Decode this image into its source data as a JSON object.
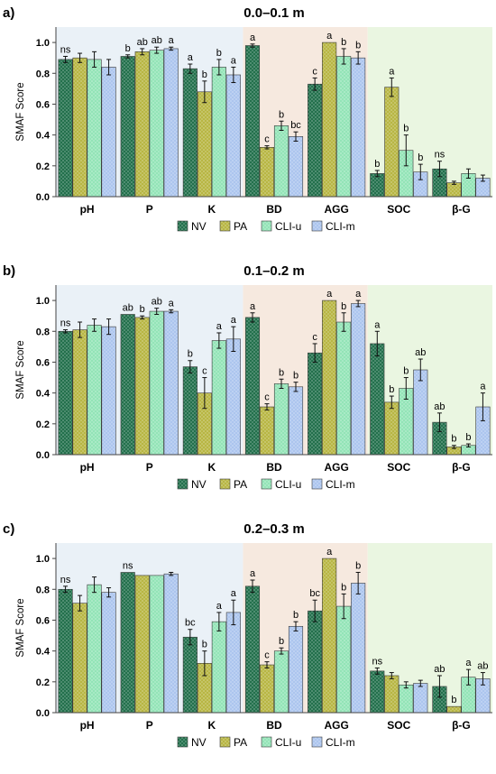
{
  "chart_data": [
    {
      "type": "bar",
      "panel_label": "a)",
      "title": "0.0–0.1 m",
      "ylabel": "SMAF Score",
      "ylim": [
        0,
        1.1
      ],
      "yticks": [
        "0.0",
        "0.2",
        "0.4",
        "0.6",
        "0.8",
        "1.0"
      ],
      "categories": [
        "pH",
        "P",
        "K",
        "BD",
        "AGG",
        "SOC",
        "β-G"
      ],
      "series": [
        {
          "name": "NV",
          "color": "#1b6b46",
          "values": [
            0.89,
            0.91,
            0.83,
            0.98,
            0.73,
            0.15,
            0.18
          ],
          "errors": [
            0.02,
            0.01,
            0.03,
            0.01,
            0.04,
            0.02,
            0.05
          ]
        },
        {
          "name": "PA",
          "color": "#b5b33c",
          "values": [
            0.9,
            0.94,
            0.68,
            0.32,
            1.0,
            0.71,
            0.09
          ],
          "errors": [
            0.03,
            0.02,
            0.07,
            0.01,
            0.0,
            0.06,
            0.01
          ]
        },
        {
          "name": "CLI-u",
          "color": "#8fe3b4",
          "values": [
            0.89,
            0.95,
            0.84,
            0.46,
            0.91,
            0.3,
            0.15
          ],
          "errors": [
            0.05,
            0.02,
            0.05,
            0.03,
            0.05,
            0.1,
            0.03
          ]
        },
        {
          "name": "CLI-m",
          "color": "#a9c3ee",
          "values": [
            0.84,
            0.96,
            0.79,
            0.39,
            0.9,
            0.16,
            0.12
          ],
          "errors": [
            0.05,
            0.01,
            0.05,
            0.03,
            0.04,
            0.05,
            0.02
          ]
        }
      ],
      "letters": [
        [
          "ns",
          "",
          "",
          ""
        ],
        [
          "b",
          "ab",
          "ab",
          "a"
        ],
        [
          "a",
          "b",
          "b",
          "a"
        ],
        [
          "a",
          "c",
          "b",
          "bc"
        ],
        [
          "c",
          "a",
          "b",
          "b"
        ],
        [
          "b",
          "a",
          "b",
          "b"
        ],
        [
          "ns",
          "",
          "",
          ""
        ]
      ],
      "legend_position": "bottom-center"
    },
    {
      "type": "bar",
      "panel_label": "b)",
      "title": "0.1–0.2 m",
      "ylabel": "SMAF Score",
      "ylim": [
        0,
        1.1
      ],
      "yticks": [
        "0.0",
        "0.2",
        "0.4",
        "0.6",
        "0.8",
        "1.0"
      ],
      "categories": [
        "pH",
        "P",
        "K",
        "BD",
        "AGG",
        "SOC",
        "β-G"
      ],
      "series": [
        {
          "name": "NV",
          "color": "#1b6b46",
          "values": [
            0.8,
            0.91,
            0.57,
            0.89,
            0.66,
            0.72,
            0.21
          ],
          "errors": [
            0.01,
            0.0,
            0.04,
            0.03,
            0.06,
            0.08,
            0.06
          ]
        },
        {
          "name": "PA",
          "color": "#b5b33c",
          "values": [
            0.81,
            0.89,
            0.4,
            0.31,
            1.0,
            0.34,
            0.05
          ],
          "errors": [
            0.05,
            0.01,
            0.1,
            0.02,
            0.0,
            0.04,
            0.01
          ]
        },
        {
          "name": "CLI-u",
          "color": "#8fe3b4",
          "values": [
            0.84,
            0.93,
            0.74,
            0.46,
            0.86,
            0.43,
            0.06
          ],
          "errors": [
            0.04,
            0.02,
            0.05,
            0.03,
            0.06,
            0.07,
            0.01
          ]
        },
        {
          "name": "CLI-m",
          "color": "#a9c3ee",
          "values": [
            0.83,
            0.93,
            0.75,
            0.44,
            0.98,
            0.55,
            0.31
          ],
          "errors": [
            0.05,
            0.01,
            0.08,
            0.03,
            0.02,
            0.07,
            0.09
          ]
        }
      ],
      "letters": [
        [
          "ns",
          "",
          "",
          ""
        ],
        [
          "ab",
          "b",
          "ab",
          "a"
        ],
        [
          "b",
          "c",
          "a",
          "a"
        ],
        [
          "a",
          "c",
          "b",
          "b"
        ],
        [
          "c",
          "a",
          "b",
          "a"
        ],
        [
          "a",
          "b",
          "b",
          "ab"
        ],
        [
          "ab",
          "b",
          "b",
          "a"
        ]
      ],
      "legend_position": "bottom-center"
    },
    {
      "type": "bar",
      "panel_label": "c)",
      "title": "0.2–0.3 m",
      "ylabel": "SMAF Score",
      "ylim": [
        0,
        1.1
      ],
      "yticks": [
        "0.0",
        "0.2",
        "0.4",
        "0.6",
        "0.8",
        "1.0"
      ],
      "categories": [
        "pH",
        "P",
        "K",
        "BD",
        "AGG",
        "SOC",
        "β-G"
      ],
      "series": [
        {
          "name": "NV",
          "color": "#1b6b46",
          "values": [
            0.8,
            0.91,
            0.49,
            0.82,
            0.66,
            0.27,
            0.17
          ],
          "errors": [
            0.02,
            0.0,
            0.05,
            0.04,
            0.07,
            0.02,
            0.07
          ]
        },
        {
          "name": "PA",
          "color": "#b5b33c",
          "values": [
            0.71,
            0.89,
            0.32,
            0.31,
            1.0,
            0.24,
            0.04
          ],
          "errors": [
            0.05,
            0.0,
            0.08,
            0.02,
            0.0,
            0.02,
            0.0
          ]
        },
        {
          "name": "CLI-u",
          "color": "#8fe3b4",
          "values": [
            0.83,
            0.89,
            0.59,
            0.4,
            0.69,
            0.18,
            0.23
          ],
          "errors": [
            0.05,
            0.0,
            0.06,
            0.02,
            0.08,
            0.02,
            0.05
          ]
        },
        {
          "name": "CLI-m",
          "color": "#a9c3ee",
          "values": [
            0.78,
            0.9,
            0.65,
            0.56,
            0.84,
            0.19,
            0.22
          ],
          "errors": [
            0.03,
            0.01,
            0.08,
            0.03,
            0.07,
            0.02,
            0.04
          ]
        }
      ],
      "letters": [
        [
          "ns",
          "",
          "",
          ""
        ],
        [
          "ns",
          "",
          "",
          ""
        ],
        [
          "bc",
          "b",
          "a",
          "a"
        ],
        [
          "a",
          "c",
          "b",
          "b"
        ],
        [
          "bc",
          "a",
          "b",
          "b"
        ],
        [
          "ns",
          "",
          "",
          ""
        ],
        [
          "ab",
          "b",
          "a",
          "ab"
        ]
      ],
      "legend_position": "bottom-center"
    }
  ],
  "background_bands": [
    {
      "from": "pH",
      "to": "K",
      "color": "#eaf1f7"
    },
    {
      "from": "BD",
      "to": "AGG",
      "color": "#f6e9df"
    },
    {
      "from": "SOC",
      "to": "β-G",
      "color": "#eaf6e1"
    }
  ]
}
